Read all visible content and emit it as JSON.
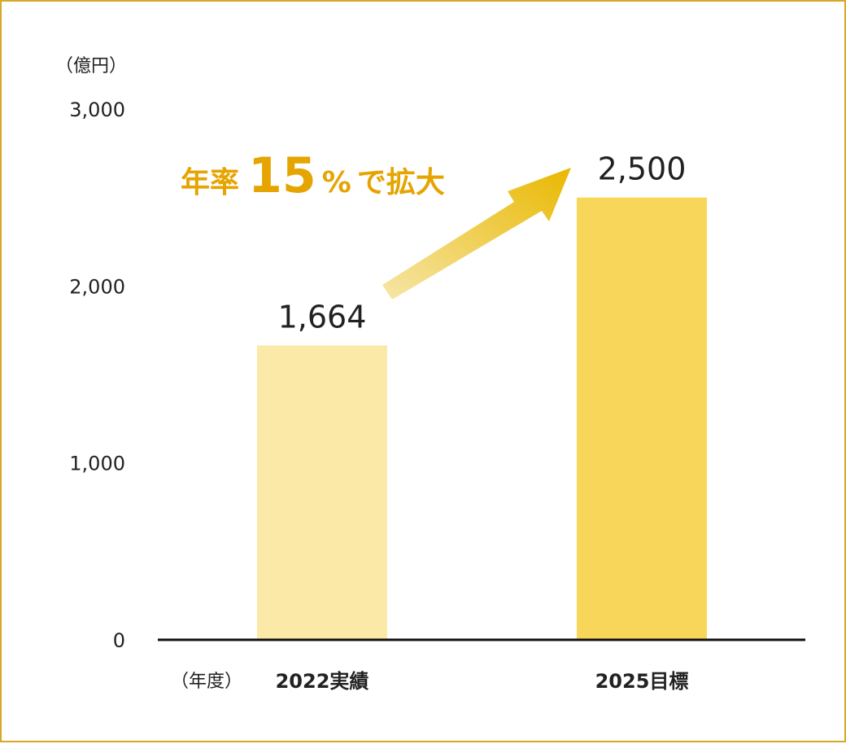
{
  "chart_data": {
    "type": "bar",
    "unit_label": "（億円）",
    "xaxis_title": "（年度）",
    "categories": [
      "2022実績",
      "2025目標"
    ],
    "values": [
      1664,
      2500
    ],
    "value_labels": [
      "1,664",
      "2,500"
    ],
    "bar_colors": [
      "#fbe9a8",
      "#f8d65a"
    ],
    "ylim": [
      0,
      3000
    ],
    "yticks": [
      0,
      1000,
      2000,
      3000
    ],
    "ytick_labels": [
      "0",
      "1,000",
      "2,000",
      "3,000"
    ],
    "grid": false,
    "annotation": {
      "prefix": "年率",
      "number": "15",
      "percent": "%",
      "suffix": "で拡大",
      "color": "#e5a400",
      "arrow_color_start": "#f6e6a8",
      "arrow_color_end": "#e9b800"
    }
  },
  "colors": {
    "frame_border": "#d8a829",
    "axis": "#111111",
    "text": "#222222"
  }
}
